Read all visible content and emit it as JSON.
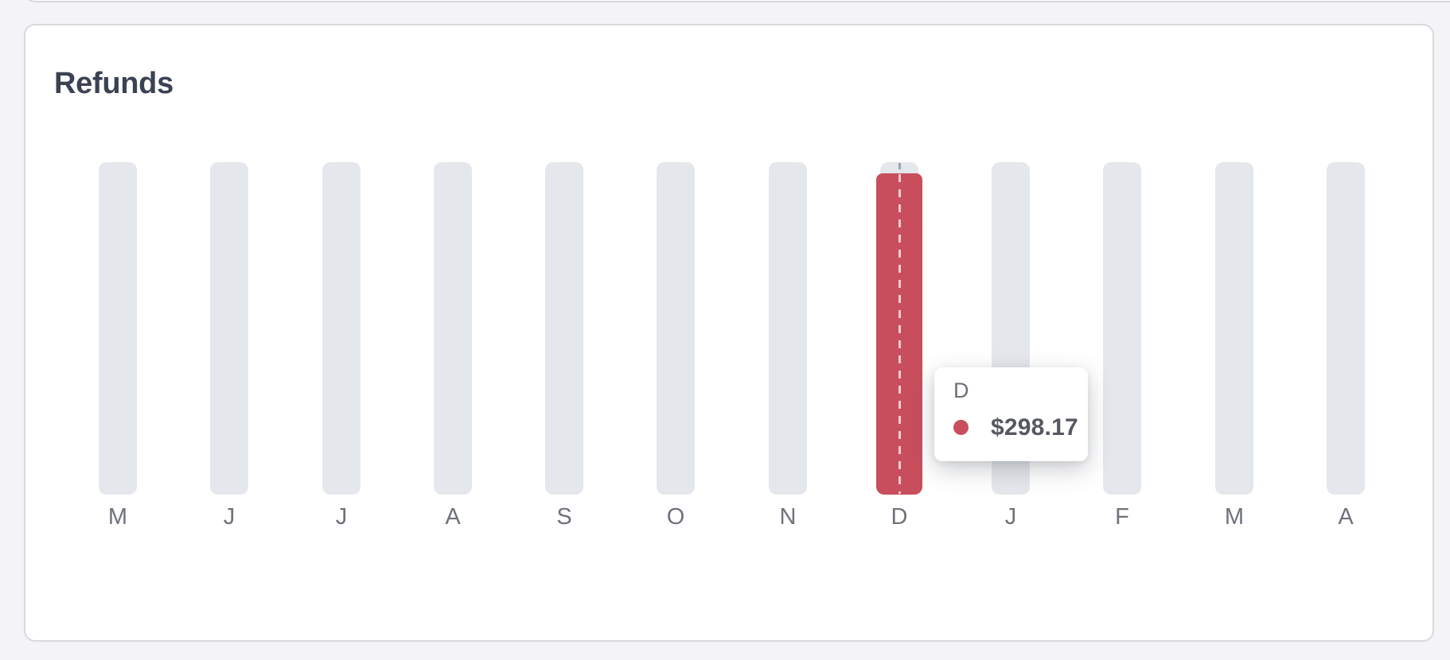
{
  "card": {
    "title": "Refunds"
  },
  "chart_data": {
    "type": "bar",
    "title": "Refunds",
    "categories": [
      "M",
      "J",
      "J",
      "A",
      "S",
      "O",
      "N",
      "D",
      "J",
      "F",
      "M",
      "A"
    ],
    "values_visible": false,
    "bars_appearance": "twelve equal-height placeholder track bars; hovered month highlighted in red with dashed cursor line through it",
    "highlight": {
      "index": 7,
      "category": "D",
      "value": 298.17,
      "value_display": "$298.17"
    },
    "xlabel": "",
    "ylabel": "",
    "y_axis": "hidden",
    "grid": "off",
    "legend": "none"
  },
  "tooltip": {
    "label": "D",
    "value_display": "$298.17"
  },
  "colors": {
    "accent_red": "#c84e5d",
    "bar_track_gray": "#e4e7eb",
    "page_background": "#f4f4f6",
    "card_background": "#ffffff",
    "card_border": "#d6d9de",
    "title_text": "#3b4253",
    "axis_label_text": "#6e727b"
  }
}
